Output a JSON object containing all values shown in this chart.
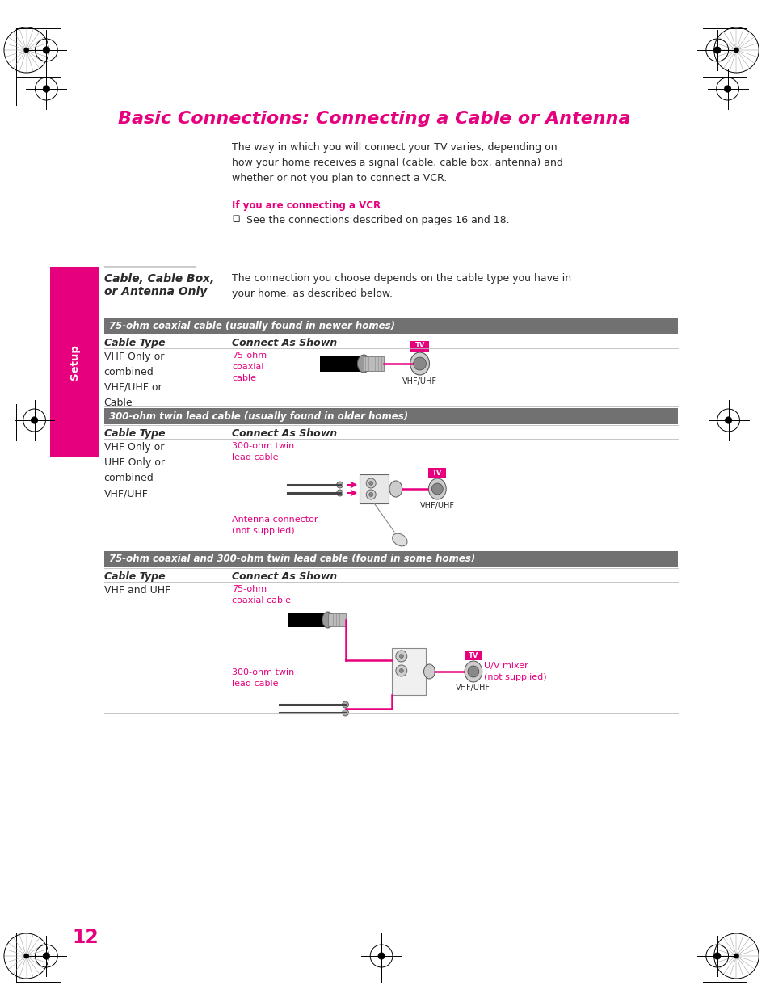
{
  "bg_color": "#ffffff",
  "page_num": "12",
  "page_num_color": "#e6007e",
  "title": "Basic Connections: Connecting a Cable or Antenna",
  "title_color": "#e6007e",
  "title_fontsize": 16,
  "intro_text": "The way in which you will connect your TV varies, depending on\nhow your home receives a signal (cable, cable box, antenna) and\nwhether or not you plan to connect a VCR.",
  "vcr_label": "If you are connecting a VCR",
  "vcr_label_color": "#e6007e",
  "sidebar_label": "Cable, Cable Box,\nor Antenna Only",
  "sidebar_color": "#e6007e",
  "section_desc": "The connection you choose depends on the cable type you have in\nyour home, as described below.",
  "bar1_label": "75-ohm coaxial cable (usually found in newer homes)",
  "bar2_label": "300-ohm twin lead cable (usually found in older homes)",
  "bar3_label": "75-ohm coaxial and 300-ohm twin lead cable (found in some homes)",
  "bar_color": "#717171",
  "row1_cable_type": "VHF Only or\ncombined\nVHF/UHF or\nCable",
  "row1_pink_label": "75-ohm\ncoaxial\ncable",
  "row2_cable_type": "VHF Only or\nUHF Only or\ncombined\nVHF/UHF",
  "row2_pink1": "300-ohm twin\nlead cable",
  "row2_pink2": "Antenna connector\n(not supplied)",
  "row3_cable_type": "VHF and UHF",
  "row3_pink1": "75-ohm\ncoaxial cable",
  "row3_pink2": "U/V mixer\n(not supplied)",
  "row3_pink3": "300-ohm twin\nlead cable",
  "pink_color": "#e6007e",
  "dark_text": "#2a2a2a",
  "light_gray": "#aaaaaa"
}
